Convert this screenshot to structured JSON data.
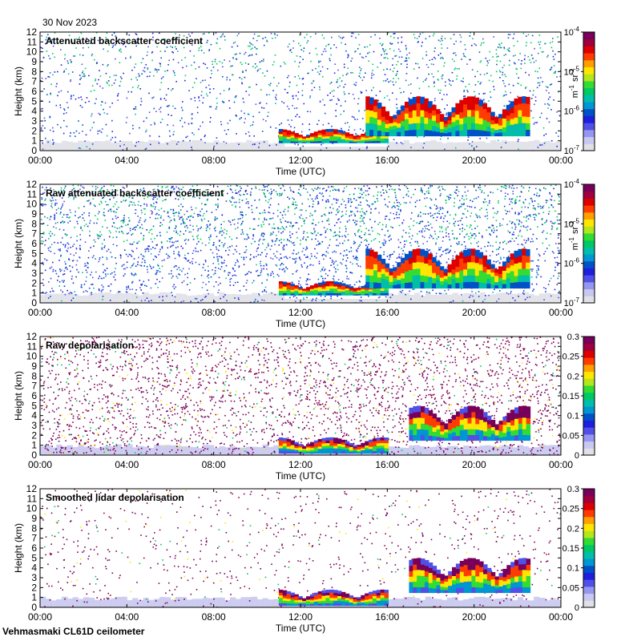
{
  "page": {
    "date": "30 Nov 2023",
    "footer": "Vehmasmaki CL61D ceilometer"
  },
  "colors": {
    "palette": [
      "#e0e0e8",
      "#c8c8f0",
      "#9696f0",
      "#5050e6",
      "#1e1edc",
      "#0050c8",
      "#0096d2",
      "#00beaa",
      "#00c864",
      "#32dc32",
      "#b4e61e",
      "#ffe600",
      "#ffa000",
      "#ff3c00",
      "#dc0000",
      "#a0003c",
      "#78005a"
    ]
  },
  "chart_data": [
    {
      "type": "heatmap",
      "title": "Attenuated backscatter coefficient",
      "xlabel": "Time (UTC)",
      "ylabel": "Height (km)",
      "x_ticks": [
        "00:00",
        "04:00",
        "08:00",
        "12:00",
        "16:00",
        "20:00",
        "00:00"
      ],
      "y_ticks": [
        "0",
        "1",
        "2",
        "3",
        "4",
        "5",
        "6",
        "7",
        "8",
        "9",
        "10",
        "11",
        "12"
      ],
      "xlim": [
        0,
        24
      ],
      "ylim": [
        0,
        12
      ],
      "colorbar": {
        "scale": "log",
        "ticks": [
          "10",
          "10",
          "10",
          "10"
        ],
        "tick_exponents": [
          "-4",
          "-5",
          "-6",
          "-7"
        ],
        "units_base": [
          "m",
          "sr"
        ],
        "units_exp": [
          "-1",
          "-1"
        ]
      },
      "features": {
        "noise_density": 0.5,
        "cloud_layers": [
          {
            "t_start": 11,
            "t_end": 16,
            "h_bottom": 0.8,
            "h_top": 2.2
          },
          {
            "t_start": 15,
            "t_end": 22.5,
            "h_bottom": 1.5,
            "h_top": 5.5
          }
        ]
      }
    },
    {
      "type": "heatmap",
      "title": "Raw attenuated backscatter coefficient",
      "xlabel": "Time (UTC)",
      "ylabel": "Height (km)",
      "x_ticks": [
        "00:00",
        "04:00",
        "08:00",
        "12:00",
        "16:00",
        "20:00",
        "00:00"
      ],
      "y_ticks": [
        "0",
        "1",
        "2",
        "3",
        "4",
        "5",
        "6",
        "7",
        "8",
        "9",
        "10",
        "11",
        "12"
      ],
      "xlim": [
        0,
        24
      ],
      "ylim": [
        0,
        12
      ],
      "colorbar": {
        "scale": "log",
        "ticks": [
          "10",
          "10",
          "10",
          "10"
        ],
        "tick_exponents": [
          "-4",
          "-5",
          "-6",
          "-7"
        ],
        "units_base": [
          "m",
          "sr"
        ],
        "units_exp": [
          "-1",
          "-1"
        ]
      },
      "features": {
        "noise_density": 1.0,
        "cloud_layers": [
          {
            "t_start": 11,
            "t_end": 16,
            "h_bottom": 0.8,
            "h_top": 2.2
          },
          {
            "t_start": 15,
            "t_end": 22.5,
            "h_bottom": 1.5,
            "h_top": 5.5
          }
        ]
      }
    },
    {
      "type": "heatmap",
      "title": "Raw depolarisation",
      "xlabel": "Time (UTC)",
      "ylabel": "Height (km)",
      "x_ticks": [
        "00:00",
        "04:00",
        "08:00",
        "12:00",
        "16:00",
        "20:00",
        "00:00"
      ],
      "y_ticks": [
        "0",
        "1",
        "2",
        "3",
        "4",
        "5",
        "6",
        "7",
        "8",
        "9",
        "10",
        "11",
        "12"
      ],
      "xlim": [
        0,
        24
      ],
      "ylim": [
        0,
        12
      ],
      "colorbar": {
        "scale": "linear",
        "range": [
          0,
          0.3
        ],
        "ticks": [
          "0.3",
          "0.25",
          "0.2",
          "0.15",
          "0.1",
          "0.05",
          "0"
        ]
      },
      "features": {
        "noise_density": 0.95,
        "cloud_layers": [
          {
            "t_start": 11,
            "t_end": 16,
            "h_bottom": 0.2,
            "h_top": 1.8
          },
          {
            "t_start": 17,
            "t_end": 22.5,
            "h_bottom": 1.5,
            "h_top": 5.0
          }
        ]
      }
    },
    {
      "type": "heatmap",
      "title": "Smoothed lidar depolarisation",
      "xlabel": "Time (UTC)",
      "ylabel": "Height (km)",
      "x_ticks": [
        "00:00",
        "04:00",
        "08:00",
        "12:00",
        "16:00",
        "20:00",
        "00:00"
      ],
      "y_ticks": [
        "0",
        "1",
        "2",
        "3",
        "4",
        "5",
        "6",
        "7",
        "8",
        "9",
        "10",
        "11",
        "12"
      ],
      "xlim": [
        0,
        24
      ],
      "ylim": [
        0,
        12
      ],
      "colorbar": {
        "scale": "linear",
        "range": [
          0,
          0.3
        ],
        "ticks": [
          "0.3",
          "0.25",
          "0.2",
          "0.15",
          "0.1",
          "0.05",
          "0"
        ]
      },
      "features": {
        "noise_density": 0.25,
        "cloud_layers": [
          {
            "t_start": 11,
            "t_end": 16,
            "h_bottom": 0.2,
            "h_top": 1.8
          },
          {
            "t_start": 17,
            "t_end": 22.5,
            "h_bottom": 1.5,
            "h_top": 5.0
          }
        ]
      }
    }
  ]
}
